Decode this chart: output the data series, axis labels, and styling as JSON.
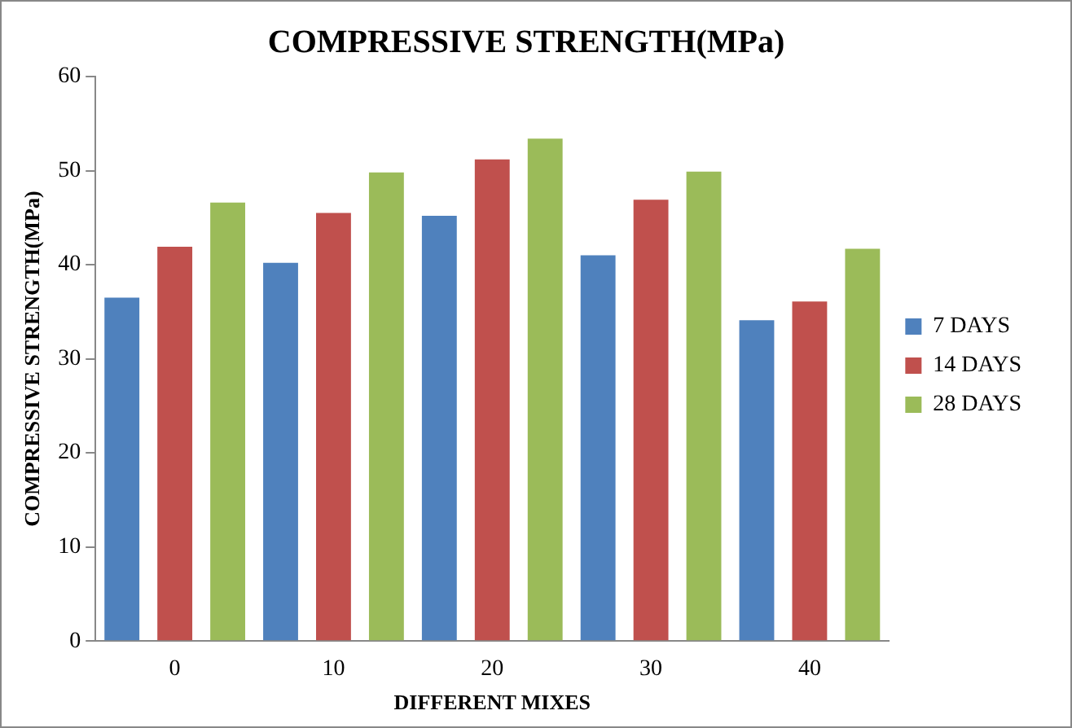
{
  "chart_data": {
    "type": "bar",
    "title": "COMPRESSIVE STRENGTH(MPa)",
    "xlabel": "DIFFERENT MIXES",
    "ylabel": "COMPRESSIVE STRENGTH(MPa)",
    "categories": [
      "0",
      "10",
      "20",
      "30",
      "40"
    ],
    "series": [
      {
        "name": "7 DAYS",
        "color": "#4f81bd",
        "values": [
          36.5,
          40.2,
          45.2,
          41.0,
          34.1
        ]
      },
      {
        "name": "14 DAYS",
        "color": "#c0504d",
        "values": [
          41.9,
          45.5,
          51.2,
          46.9,
          36.1
        ]
      },
      {
        "name": "28 DAYS",
        "color": "#9bbb59",
        "values": [
          46.6,
          49.8,
          53.4,
          49.9,
          41.7
        ]
      }
    ],
    "ylim": [
      0,
      60
    ],
    "yticks": [
      0,
      10,
      20,
      30,
      40,
      50,
      60
    ],
    "grid": false,
    "legend": "right"
  }
}
